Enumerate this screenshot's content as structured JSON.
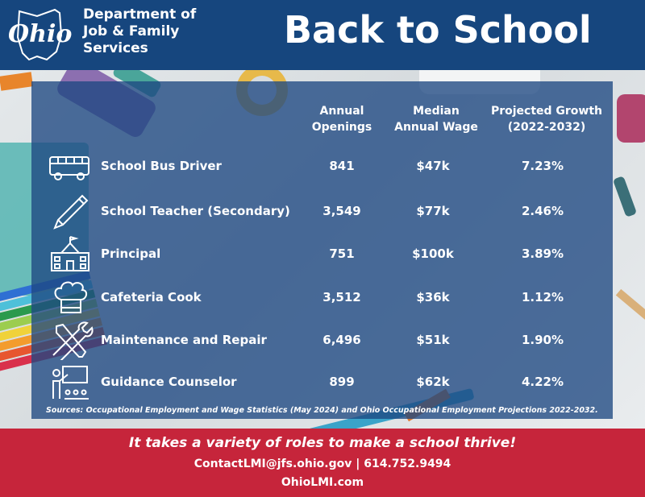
{
  "header": {
    "agency_line1": "Department of",
    "agency_line2": "Job & Family",
    "agency_line3": "Services",
    "logo_text": "Ohio",
    "title": "Back to School"
  },
  "table": {
    "headers": {
      "col1_line1": "Annual",
      "col1_line2": "Openings",
      "col2_line1": "Median",
      "col2_line2": "Annual Wage",
      "col3_line1": "Projected Growth",
      "col3_line2": "(2022-2032)"
    },
    "rows": [
      {
        "icon": "bus-icon",
        "occupation": "School Bus Driver",
        "openings": "841",
        "wage": "$47k",
        "growth": "7.23%"
      },
      {
        "icon": "pencil-icon",
        "occupation": "School Teacher (Secondary)",
        "openings": "3,549",
        "wage": "$77k",
        "growth": "2.46%"
      },
      {
        "icon": "school-building-icon",
        "occupation": "Principal",
        "openings": "751",
        "wage": "$100k",
        "growth": "3.89%"
      },
      {
        "icon": "chef-hat-icon",
        "occupation": "Cafeteria Cook",
        "openings": "3,512",
        "wage": "$36k",
        "growth": "1.12%"
      },
      {
        "icon": "tools-icon",
        "occupation": "Maintenance and Repair",
        "openings": "6,496",
        "wage": "$51k",
        "growth": "1.90%"
      },
      {
        "icon": "teacher-board-icon",
        "occupation": "Guidance Counselor",
        "openings": "899",
        "wage": "$62k",
        "growth": "4.22%"
      }
    ],
    "sources": "Sources: Occupational Employment and Wage Statistics (May 2024) and Ohio Occupational Employment Projections 2022-2032."
  },
  "footer": {
    "tagline": "It takes a variety of roles to make a school thrive!",
    "contact": "ContactLMI@jfs.ohio.gov | 614.752.9494",
    "website": "OhioLMI.com"
  },
  "colors": {
    "header_blue": "#16467e",
    "footer_red": "#c6253b",
    "panel_blue": "#1e4882"
  }
}
